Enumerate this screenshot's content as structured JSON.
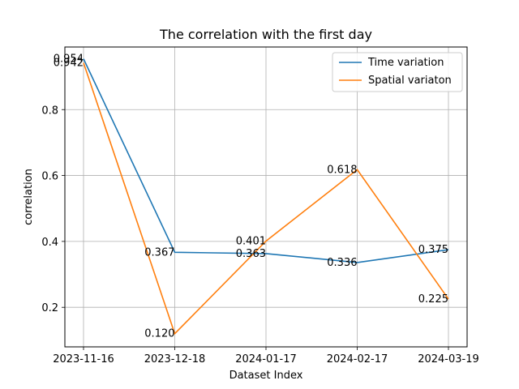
{
  "chart_data": {
    "type": "line",
    "title": "The correlation with the first day",
    "xlabel": "Dataset Index",
    "ylabel": "correlation",
    "categories": [
      "2023-11-16",
      "2023-12-18",
      "2024-01-17",
      "2024-02-17",
      "2024-03-19"
    ],
    "ylim": [
      0.08,
      0.99
    ],
    "yticks": [
      0.2,
      0.4,
      0.6,
      0.8
    ],
    "ytick_labels": [
      "0.2",
      "0.4",
      "0.6",
      "0.8"
    ],
    "grid": true,
    "legend_position": "top-right",
    "series": [
      {
        "name": "Time variation",
        "color": "#1f77b4",
        "values": [
          0.954,
          0.367,
          0.363,
          0.336,
          0.375
        ],
        "labels": [
          "0.954",
          "0.367",
          "0.363",
          "0.336",
          "0.375"
        ]
      },
      {
        "name": "Spatial variaton",
        "color": "#ff7f0e",
        "values": [
          0.942,
          0.12,
          0.401,
          0.618,
          0.225
        ],
        "labels": [
          "0.942",
          "0.120",
          "0.401",
          "0.618",
          "0.225"
        ]
      }
    ]
  }
}
